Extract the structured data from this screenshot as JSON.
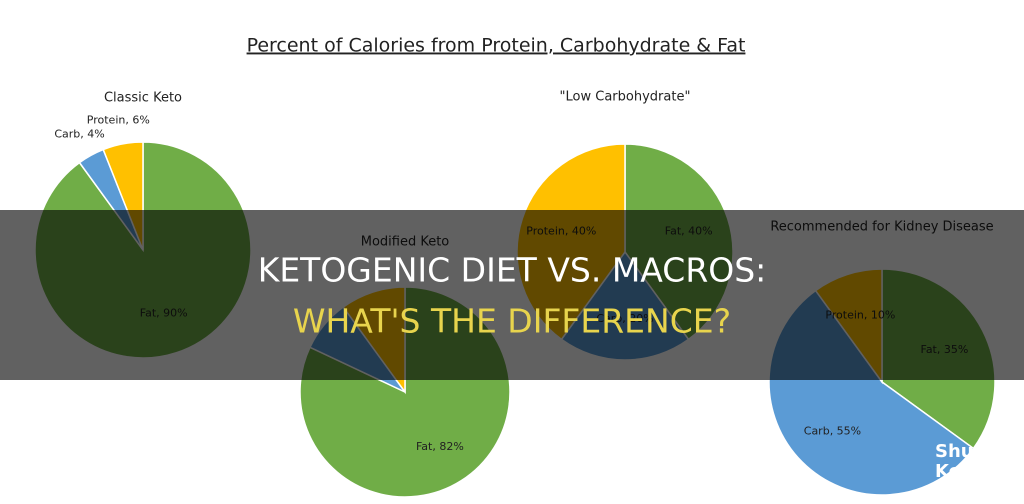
{
  "title": "Percent of Calories from Protein, Carbohydrate & Fat",
  "headline": {
    "line1": "KETOGENIC DIET VS. MACROS:",
    "line2": "WHAT'S THE DIFFERENCE?"
  },
  "watermark": {
    "line1": "Shun",
    "line2": "Keto"
  },
  "chart_data": [
    {
      "type": "pie",
      "title": "Classic Keto",
      "categories": [
        "Fat",
        "Carb",
        "Protein"
      ],
      "values": [
        90,
        4,
        6
      ],
      "value_labels": [
        "Fat, 90%",
        "Carb, 4%",
        "Protein, 6%"
      ],
      "colors": [
        "#70ad47",
        "#5b9bd5",
        "#ffc000"
      ]
    },
    {
      "type": "pie",
      "title": "\"Low Carbohydrate\"",
      "categories": [
        "Fat",
        "Carb",
        "Protein"
      ],
      "values": [
        40,
        20,
        40
      ],
      "value_labels": [
        "Fat, 40%",
        "Carb, 20%",
        "Protein, 40%"
      ],
      "colors": [
        "#70ad47",
        "#5b9bd5",
        "#ffc000"
      ]
    },
    {
      "type": "pie",
      "title": "Modified Keto",
      "categories": [
        "Fat",
        "Carb",
        "Protein"
      ],
      "values": [
        82,
        8,
        10
      ],
      "value_labels": [
        "Fat, 82%",
        null,
        null
      ],
      "colors": [
        "#70ad47",
        "#5b9bd5",
        "#ffc000"
      ]
    },
    {
      "type": "pie",
      "title": "Recommended for Kidney Disease",
      "categories": [
        "Fat",
        "Carb",
        "Protein"
      ],
      "values": [
        35,
        55,
        10
      ],
      "value_labels": [
        "Fat, 35%",
        "Carb, 55%",
        "Protein, 10%"
      ],
      "colors": [
        "#70ad47",
        "#5b9bd5",
        "#ffc000"
      ]
    }
  ]
}
